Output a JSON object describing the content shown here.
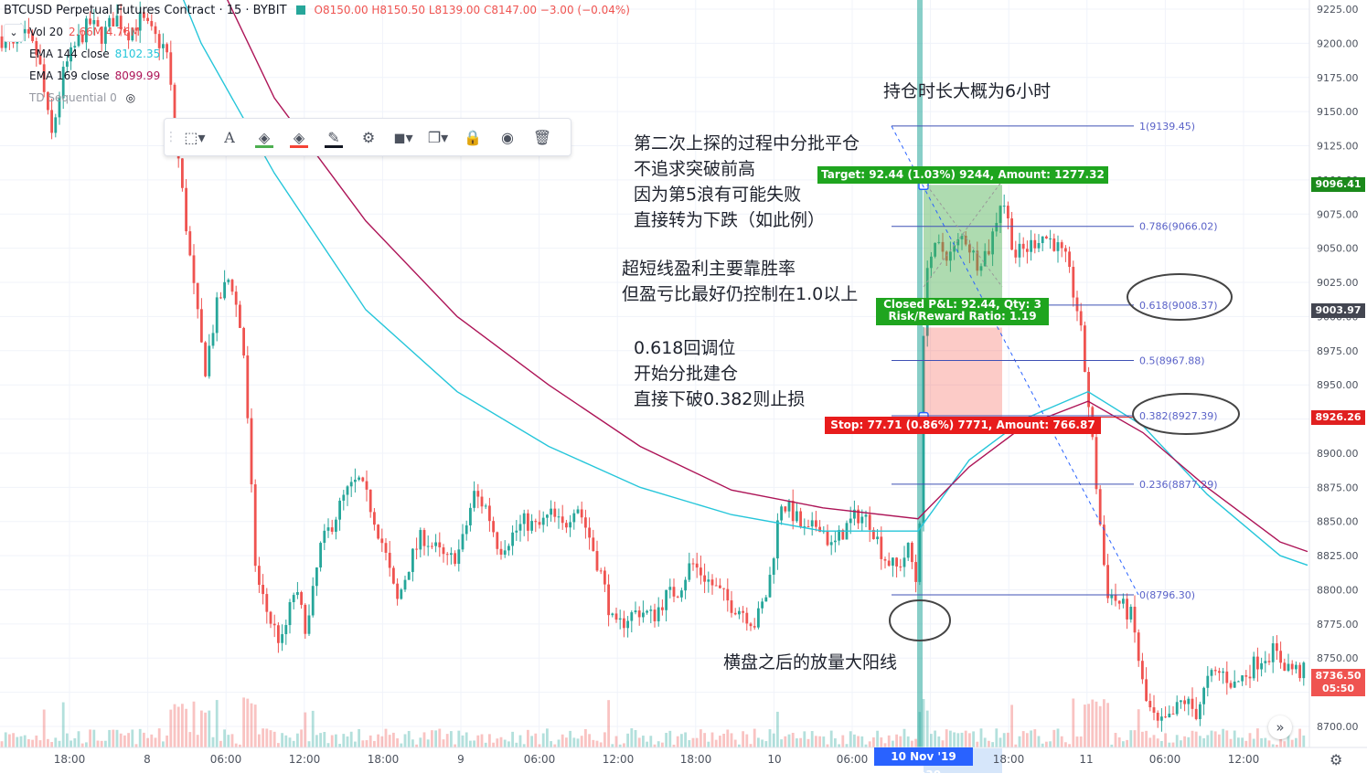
{
  "header": {
    "symbol": "BTCUSD Perpetual Futures Contract · 15 · BYBIT",
    "ohlc": "O8150.00  H8150.50  L8139.00  C8147.00  −3.00 (−0.04%)"
  },
  "legend": [
    {
      "name": "Vol 20",
      "value": "2.66M  4.76M",
      "color": "#ef5350"
    },
    {
      "name": "EMA 144 close",
      "value": "8102.35",
      "color": "#26c6da"
    },
    {
      "name": "EMA 169 close",
      "value": "8099.99",
      "color": "#ad1457"
    },
    {
      "name": "TD Sequential 0",
      "value": "",
      "color": "#9598a1"
    }
  ],
  "toolbar_icons": [
    "select-icon",
    "text-icon",
    "fill-icon",
    "background-icon",
    "line-color-icon",
    "settings-icon",
    "layers-icon",
    "clone-icon",
    "lock-icon",
    "visibility-icon",
    "trash-icon"
  ],
  "notes": {
    "holding_time": "持仓时长大概为6小时",
    "exit_plan": [
      "第二次上探的过程中分批平仓",
      "不追求突破前高",
      "因为第5浪有可能失败",
      "直接转为下跌（如此例）"
    ],
    "win_rate": [
      "超短线盈利主要靠胜率",
      "但盈亏比最好仍控制在1.0以上"
    ],
    "entry_plan": [
      "0.618回调位",
      "开始分批建仓",
      "直接下破0.382则止损"
    ],
    "volume_note": "横盘之后的放量大阳线"
  },
  "position": {
    "target_label": "Target: 92.44 (1.03%) 9244, Amount: 1277.32",
    "closed_label": "Closed P&L: 92.44, Qty: 3",
    "rr_label": "Risk/Reward Ratio: 1.19",
    "stop_label": "Stop: 77.71 (0.86%) 7771, Amount: 766.87",
    "entry": 9003.97,
    "target": 9096.41,
    "stop": 8926.26,
    "profit_color": "#4caf50",
    "loss_color": "#f44336"
  },
  "price_tags": [
    {
      "label": "9096.41",
      "value": 9096.41,
      "color": "#1b8a1b"
    },
    {
      "label": "9003.97",
      "value": 9003.97,
      "color": "#434651"
    },
    {
      "label": "8926.26",
      "value": 8926.26,
      "color": "#e02020"
    },
    {
      "label": "8736.50",
      "value": 8736.5,
      "color": "#ef5350"
    },
    {
      "label": "05:50",
      "value": 8727.5,
      "color": "#ef5350"
    }
  ],
  "time_axis": {
    "labels": [
      "18:00",
      "8",
      "06:00",
      "12:00",
      "18:00",
      "9",
      "06:00",
      "12:00",
      "18:00",
      "10",
      "06:00",
      "18:00",
      "11",
      "06:00",
      "12:00"
    ],
    "crosshair": "10 Nov '19   11:30"
  },
  "chart_data": {
    "type": "candlestick",
    "ylim": [
      8690,
      9230
    ],
    "y_ticks": [
      9225,
      9200,
      9175,
      9150,
      9125,
      9100,
      9075,
      9050,
      9025,
      9000,
      8975,
      8950,
      8925,
      8900,
      8875,
      8850,
      8825,
      8800,
      8775,
      8750,
      8725,
      8700
    ],
    "fib_levels": [
      {
        "label": "1(9139.45)",
        "value": 9139.45
      },
      {
        "label": "0.786(9066.02)",
        "value": 9066.02
      },
      {
        "label": "0.618(9008.37)",
        "value": 9008.37
      },
      {
        "label": "0.5(8967.88)",
        "value": 8967.88
      },
      {
        "label": "0.382(8927.39)",
        "value": 8927.39
      },
      {
        "label": "0.236(8877.29)",
        "value": 8877.29
      },
      {
        "label": "0(8796.30)",
        "value": 8796.3
      }
    ],
    "close_path": [
      [
        0,
        9205
      ],
      [
        14,
        9195
      ],
      [
        28,
        9205
      ],
      [
        42,
        9190
      ],
      [
        56,
        9130
      ],
      [
        70,
        9180
      ],
      [
        84,
        9200
      ],
      [
        98,
        9215
      ],
      [
        112,
        9205
      ],
      [
        126,
        9220
      ],
      [
        140,
        9208
      ],
      [
        154,
        9218
      ],
      [
        168,
        9205
      ],
      [
        182,
        9195
      ],
      [
        196,
        9110
      ],
      [
        210,
        9030
      ],
      [
        224,
        8960
      ],
      [
        238,
        9010
      ],
      [
        252,
        9030
      ],
      [
        266,
        8980
      ],
      [
        280,
        8810
      ],
      [
        294,
        8780
      ],
      [
        308,
        8760
      ],
      [
        322,
        8800
      ],
      [
        336,
        8770
      ],
      [
        350,
        8830
      ],
      [
        364,
        8850
      ],
      [
        378,
        8870
      ],
      [
        392,
        8880
      ],
      [
        406,
        8860
      ],
      [
        420,
        8830
      ],
      [
        434,
        8790
      ],
      [
        448,
        8820
      ],
      [
        462,
        8840
      ],
      [
        476,
        8830
      ],
      [
        490,
        8820
      ],
      [
        504,
        8830
      ],
      [
        518,
        8870
      ],
      [
        532,
        8860
      ],
      [
        546,
        8830
      ],
      [
        560,
        8840
      ],
      [
        574,
        8850
      ],
      [
        588,
        8845
      ],
      [
        602,
        8855
      ],
      [
        616,
        8845
      ],
      [
        630,
        8865
      ],
      [
        644,
        8840
      ],
      [
        658,
        8810
      ],
      [
        672,
        8770
      ],
      [
        686,
        8780
      ],
      [
        700,
        8785
      ],
      [
        714,
        8780
      ],
      [
        728,
        8795
      ],
      [
        742,
        8800
      ],
      [
        756,
        8820
      ],
      [
        770,
        8810
      ],
      [
        784,
        8800
      ],
      [
        798,
        8790
      ],
      [
        812,
        8785
      ],
      [
        826,
        8775
      ],
      [
        840,
        8800
      ],
      [
        854,
        8865
      ],
      [
        868,
        8855
      ],
      [
        882,
        8840
      ],
      [
        896,
        8850
      ],
      [
        910,
        8830
      ],
      [
        924,
        8845
      ],
      [
        938,
        8855
      ],
      [
        952,
        8850
      ],
      [
        966,
        8825
      ],
      [
        980,
        8815
      ],
      [
        994,
        8830
      ],
      [
        1004,
        8800
      ],
      [
        1012,
        9040
      ],
      [
        1026,
        9050
      ],
      [
        1040,
        9045
      ],
      [
        1054,
        9060
      ],
      [
        1068,
        9040
      ],
      [
        1082,
        9050
      ],
      [
        1096,
        9090
      ],
      [
        1110,
        9045
      ],
      [
        1124,
        9050
      ],
      [
        1138,
        9060
      ],
      [
        1152,
        9055
      ],
      [
        1166,
        9040
      ],
      [
        1180,
        9000
      ],
      [
        1190,
        8940
      ],
      [
        1200,
        8870
      ],
      [
        1210,
        8800
      ],
      [
        1224,
        8790
      ],
      [
        1238,
        8780
      ],
      [
        1252,
        8720
      ],
      [
        1266,
        8700
      ],
      [
        1280,
        8705
      ],
      [
        1294,
        8720
      ],
      [
        1308,
        8710
      ],
      [
        1322,
        8735
      ],
      [
        1336,
        8740
      ],
      [
        1350,
        8730
      ],
      [
        1364,
        8740
      ],
      [
        1378,
        8750
      ],
      [
        1392,
        8755
      ],
      [
        1406,
        8745
      ],
      [
        1420,
        8740
      ]
    ],
    "ema144": [
      [
        150,
        9315
      ],
      [
        220,
        9200
      ],
      [
        300,
        9105
      ],
      [
        400,
        9005
      ],
      [
        500,
        8945
      ],
      [
        600,
        8905
      ],
      [
        700,
        8875
      ],
      [
        800,
        8855
      ],
      [
        900,
        8843
      ],
      [
        1004,
        8843
      ],
      [
        1060,
        8895
      ],
      [
        1120,
        8925
      ],
      [
        1190,
        8945
      ],
      [
        1250,
        8920
      ],
      [
        1320,
        8870
      ],
      [
        1400,
        8825
      ],
      [
        1430,
        8818
      ]
    ],
    "ema169": [
      [
        200,
        9300
      ],
      [
        300,
        9160
      ],
      [
        400,
        9070
      ],
      [
        500,
        9000
      ],
      [
        600,
        8950
      ],
      [
        700,
        8905
      ],
      [
        800,
        8873
      ],
      [
        900,
        8860
      ],
      [
        1004,
        8852
      ],
      [
        1060,
        8890
      ],
      [
        1120,
        8920
      ],
      [
        1190,
        8938
      ],
      [
        1250,
        8915
      ],
      [
        1320,
        8875
      ],
      [
        1400,
        8835
      ],
      [
        1430,
        8828
      ]
    ]
  }
}
